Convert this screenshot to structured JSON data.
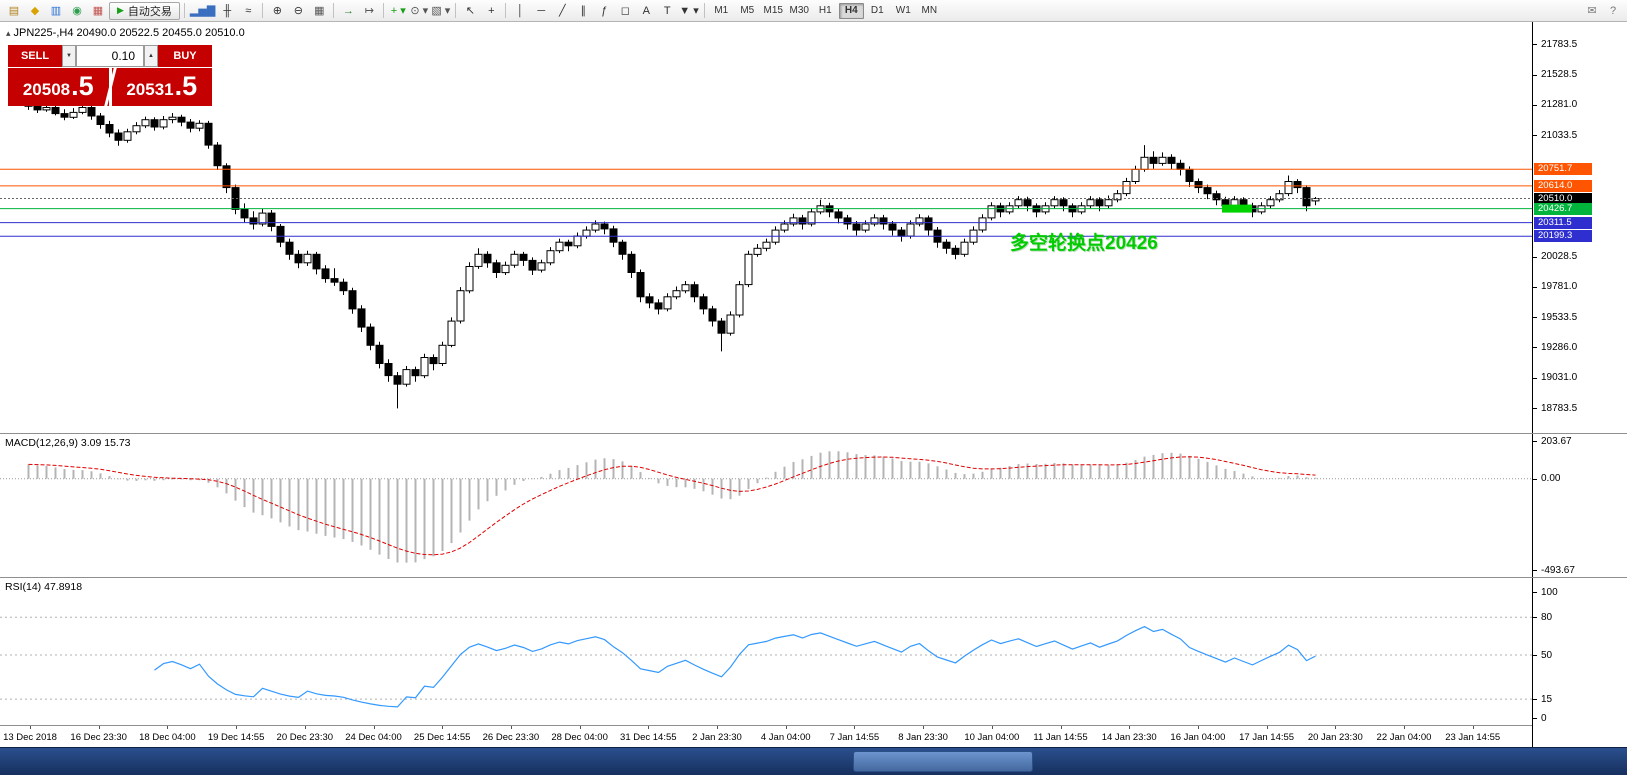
{
  "icons": {
    "chart_title_icon": "▴",
    "volume_down": "▼",
    "volume_up": "▲"
  },
  "toolbar": {
    "items": [
      {
        "name": "new-order-icon",
        "glyph": "▤",
        "color": "#b0821e"
      },
      {
        "name": "profiles-icon",
        "glyph": "◆",
        "color": "#d8a200"
      },
      {
        "name": "market-watch-icon",
        "glyph": "▥",
        "color": "#2a6fd6"
      },
      {
        "name": "navigator-icon",
        "glyph": "◉",
        "color": "#2e9e4f"
      },
      {
        "name": "terminal-icon",
        "glyph": "▦",
        "color": "#c0504d"
      },
      {
        "type": "button",
        "name": "auto-trading-button",
        "glyph": "▶",
        "glyph_color": "#18a018",
        "label": "自动交易"
      },
      {
        "type": "sep"
      },
      {
        "name": "new-chart-icon",
        "glyph": "▂▅▇",
        "color": "#3a6fc0"
      },
      {
        "name": "candlestick-chart-icon",
        "glyph": "╫",
        "color": "#333333"
      },
      {
        "name": "line-chart-icon",
        "glyph": "≈",
        "color": "#333333"
      },
      {
        "type": "sep"
      },
      {
        "name": "zoom-in-icon",
        "glyph": "⊕",
        "color": "#333333"
      },
      {
        "name": "zoom-out-icon",
        "glyph": "⊖",
        "color": "#333333"
      },
      {
        "name": "tile-windows-icon",
        "glyph": "▦",
        "color": "#555555"
      },
      {
        "type": "sep"
      },
      {
        "name": "auto-scroll-icon",
        "glyph": "→",
        "color": "#2e7d32"
      },
      {
        "name": "chart-shift-icon",
        "glyph": "↦",
        "color": "#555555"
      },
      {
        "type": "sep"
      },
      {
        "name": "indicators-icon",
        "glyph": "+",
        "color": "#18a018",
        "dropdown": true
      },
      {
        "name": "periods-icon",
        "glyph": "⊙",
        "color": "#555555",
        "dropdown": true
      },
      {
        "name": "templates-icon",
        "glyph": "▧",
        "color": "#555555",
        "dropdown": true
      },
      {
        "type": "sep"
      },
      {
        "name": "cursor-icon",
        "glyph": "↖",
        "color": "#333333"
      },
      {
        "name": "crosshair-icon",
        "glyph": "+",
        "color": "#333333"
      },
      {
        "type": "sep"
      },
      {
        "name": "vertical-line-icon",
        "glyph": "│",
        "color": "#333333"
      },
      {
        "name": "horizontal-line-icon",
        "glyph": "─",
        "color": "#333333"
      },
      {
        "name": "trendline-icon",
        "glyph": "╱",
        "color": "#333333"
      },
      {
        "name": "channel-icon",
        "glyph": "∥",
        "color": "#333333"
      },
      {
        "name": "fibonacci-icon",
        "glyph": "ƒ",
        "color": "#333333"
      },
      {
        "name": "shapes-icon",
        "glyph": "◻",
        "color": "#333333"
      },
      {
        "name": "text-icon",
        "glyph": "A",
        "color": "#333333"
      },
      {
        "name": "text-label-icon",
        "glyph": "T",
        "color": "#333333"
      },
      {
        "name": "arrows-icon",
        "glyph": "▼",
        "color": "#333333",
        "dropdown": true
      },
      {
        "type": "sep"
      },
      {
        "type": "tf",
        "label": "M1"
      },
      {
        "type": "tf",
        "label": "M5"
      },
      {
        "type": "tf",
        "label": "M15"
      },
      {
        "type": "tf",
        "label": "M30"
      },
      {
        "type": "tf",
        "label": "H1"
      },
      {
        "type": "tf",
        "label": "H4",
        "active": true
      },
      {
        "type": "tf",
        "label": "D1"
      },
      {
        "type": "tf",
        "label": "W1"
      },
      {
        "type": "tf",
        "label": "MN"
      },
      {
        "type": "spacer"
      },
      {
        "name": "mail-icon",
        "glyph": "✉",
        "color": "#777777"
      },
      {
        "name": "help-icon",
        "glyph": "?",
        "color": "#777777"
      }
    ]
  },
  "chart": {
    "title": "JPN225-,H4 20490.0 20522.5 20455.0 20510.0",
    "trade_panel": {
      "sell_label": "SELL",
      "buy_label": "BUY",
      "volume": "0.10",
      "sell_price_main": "20508",
      "sell_price_big": ".5",
      "buy_price_main": "20531",
      "buy_price_big": ".5"
    },
    "levels": [
      {
        "price": 20751.7,
        "label": "20751.7",
        "color": "#ff5500",
        "style": "solid"
      },
      {
        "price": 20614.0,
        "label": "20614.0",
        "color": "#ff5500",
        "style": "solid"
      },
      {
        "price": 20510.0,
        "label": "20510.0",
        "color": "#000000",
        "style": "bid"
      },
      {
        "price": 20426.7,
        "label": "20426.7",
        "color": "#00b43c",
        "style": "solid"
      },
      {
        "price": 20311.5,
        "label": "20311.5",
        "color": "#2f2fd0",
        "style": "solid"
      },
      {
        "price": 20199.3,
        "label": "20199.3",
        "color": "#2f2fd0",
        "style": "solid"
      }
    ],
    "annotation": {
      "text": "多空轮换点20426",
      "color": "#00cc00"
    },
    "highlight": {
      "price": 20426.7,
      "color": "#00d200"
    },
    "y_axis": {
      "scale_labels": [
        "21783.5",
        "21528.5",
        "21281.0",
        "21033.5",
        "20028.5",
        "19781.0",
        "19533.5",
        "19286.0",
        "19031.0",
        "18783.5"
      ]
    },
    "x_axis_labels": [
      "13 Dec 2018",
      "16 Dec 23:30",
      "18 Dec 04:00",
      "19 Dec 14:55",
      "20 Dec 23:30",
      "24 Dec 04:00",
      "25 Dec 14:55",
      "26 Dec 23:30",
      "28 Dec 04:00",
      "31 Dec 14:55",
      "2 Jan 23:30",
      "4 Jan 04:00",
      "7 Jan 14:55",
      "8 Jan 23:30",
      "10 Jan 04:00",
      "11 Jan 14:55",
      "14 Jan 23:30",
      "16 Jan 04:00",
      "17 Jan 14:55",
      "20 Jan 23:30",
      "22 Jan 04:00",
      "23 Jan 14:55"
    ]
  },
  "chart_data": {
    "type": "candlestick",
    "symbol": "JPN225-",
    "timeframe": "H4",
    "current_ohlc": {
      "open": 20490.0,
      "high": 20522.5,
      "low": 20455.0,
      "close": 20510.0
    },
    "price_range": [
      18783.5,
      21783.5
    ],
    "macd": {
      "name": "MACD(12,26,9)",
      "values_text": "3.09 15.73",
      "axis_labels": [
        "203.67",
        "0.00",
        "-493.67"
      ],
      "axis_values": [
        203.67,
        0,
        -493.67
      ]
    },
    "rsi": {
      "name": "RSI(14)",
      "value_text": "47.8918",
      "axis_labels": [
        "100",
        "80",
        "50",
        "15",
        "0"
      ],
      "axis_values": [
        100,
        80,
        50,
        15,
        0
      ],
      "levels": [
        80,
        50,
        15
      ]
    },
    "candles": [
      [
        21280,
        21310,
        21240,
        21270
      ],
      [
        21270,
        21295,
        21215,
        21240
      ],
      [
        21240,
        21290,
        21225,
        21260
      ],
      [
        21260,
        21330,
        21195,
        21210
      ],
      [
        21210,
        21245,
        21155,
        21180
      ],
      [
        21180,
        21255,
        21165,
        21220
      ],
      [
        21220,
        21320,
        21205,
        21260
      ],
      [
        21260,
        21285,
        21160,
        21190
      ],
      [
        21190,
        21215,
        21085,
        21120
      ],
      [
        21120,
        21150,
        21015,
        21050
      ],
      [
        21050,
        21080,
        20945,
        20990
      ],
      [
        20990,
        21085,
        20970,
        21060
      ],
      [
        21060,
        21140,
        21040,
        21110
      ],
      [
        21110,
        21185,
        21090,
        21160
      ],
      [
        21160,
        21180,
        21070,
        21100
      ],
      [
        21100,
        21190,
        21080,
        21160
      ],
      [
        21160,
        21215,
        21130,
        21180
      ],
      [
        21180,
        21200,
        21105,
        21140
      ],
      [
        21140,
        21165,
        21055,
        21090
      ],
      [
        21090,
        21155,
        21065,
        21130
      ],
      [
        21130,
        21150,
        20920,
        20950
      ],
      [
        20950,
        20975,
        20745,
        20780
      ],
      [
        20780,
        20800,
        20555,
        20600
      ],
      [
        20600,
        20625,
        20380,
        20420
      ],
      [
        20420,
        20470,
        20315,
        20350
      ],
      [
        20350,
        20405,
        20255,
        20300
      ],
      [
        20300,
        20425,
        20280,
        20390
      ],
      [
        20390,
        20415,
        20240,
        20280
      ],
      [
        20280,
        20300,
        20110,
        20150
      ],
      [
        20150,
        20180,
        20005,
        20050
      ],
      [
        20050,
        20085,
        19935,
        19980
      ],
      [
        19980,
        20080,
        19955,
        20050
      ],
      [
        20050,
        20070,
        19885,
        19930
      ],
      [
        19930,
        19960,
        19815,
        19850
      ],
      [
        19850,
        19935,
        19790,
        19820
      ],
      [
        19820,
        19850,
        19715,
        19750
      ],
      [
        19750,
        19775,
        19560,
        19600
      ],
      [
        19600,
        19630,
        19410,
        19450
      ],
      [
        19450,
        19480,
        19260,
        19300
      ],
      [
        19300,
        19330,
        19110,
        19150
      ],
      [
        19150,
        19185,
        19000,
        19050
      ],
      [
        19050,
        19080,
        18780,
        18980
      ],
      [
        18980,
        19130,
        18960,
        19100
      ],
      [
        19100,
        19125,
        19000,
        19050
      ],
      [
        19050,
        19230,
        19030,
        19200
      ],
      [
        19200,
        19225,
        19095,
        19150
      ],
      [
        19150,
        19330,
        19130,
        19300
      ],
      [
        19300,
        19530,
        19285,
        19500
      ],
      [
        19500,
        19780,
        19480,
        19750
      ],
      [
        19750,
        19985,
        19730,
        19950
      ],
      [
        19950,
        20100,
        19930,
        20050
      ],
      [
        20050,
        20075,
        19940,
        19980
      ],
      [
        19980,
        20005,
        19855,
        19900
      ],
      [
        19900,
        19990,
        19880,
        19960
      ],
      [
        19960,
        20080,
        19940,
        20050
      ],
      [
        20050,
        20070,
        19955,
        20000
      ],
      [
        20000,
        20025,
        19880,
        19920
      ],
      [
        19920,
        20005,
        19900,
        19980
      ],
      [
        19980,
        20110,
        19960,
        20080
      ],
      [
        20080,
        20180,
        20060,
        20150
      ],
      [
        20150,
        20170,
        20075,
        20120
      ],
      [
        20120,
        20230,
        20100,
        20200
      ],
      [
        20200,
        20280,
        20180,
        20250
      ],
      [
        20250,
        20330,
        20230,
        20300
      ],
      [
        20300,
        20320,
        20215,
        20260
      ],
      [
        20260,
        20285,
        20110,
        20150
      ],
      [
        20150,
        20170,
        20005,
        20050
      ],
      [
        20050,
        20075,
        19855,
        19900
      ],
      [
        19900,
        19925,
        19655,
        19700
      ],
      [
        19700,
        19730,
        19605,
        19650
      ],
      [
        19650,
        19680,
        19555,
        19600
      ],
      [
        19600,
        19730,
        19580,
        19700
      ],
      [
        19700,
        19785,
        19680,
        19750
      ],
      [
        19750,
        19830,
        19730,
        19800
      ],
      [
        19800,
        19825,
        19655,
        19700
      ],
      [
        19700,
        19725,
        19555,
        19600
      ],
      [
        19600,
        19625,
        19455,
        19500
      ],
      [
        19500,
        19525,
        19250,
        19400
      ],
      [
        19400,
        19580,
        19380,
        19550
      ],
      [
        19550,
        19830,
        19530,
        19800
      ],
      [
        19800,
        20080,
        19780,
        20050
      ],
      [
        20050,
        20135,
        20030,
        20100
      ],
      [
        20100,
        20180,
        20075,
        20150
      ],
      [
        20150,
        20280,
        20130,
        20250
      ],
      [
        20250,
        20330,
        20230,
        20300
      ],
      [
        20300,
        20385,
        20280,
        20350
      ],
      [
        20350,
        20375,
        20255,
        20300
      ],
      [
        20300,
        20430,
        20280,
        20400
      ],
      [
        20400,
        20500,
        20380,
        20450
      ],
      [
        20450,
        20475,
        20355,
        20400
      ],
      [
        20400,
        20425,
        20305,
        20350
      ],
      [
        20350,
        20375,
        20255,
        20300
      ],
      [
        20300,
        20325,
        20205,
        20250
      ],
      [
        20250,
        20330,
        20230,
        20300
      ],
      [
        20300,
        20380,
        20280,
        20350
      ],
      [
        20350,
        20375,
        20255,
        20300
      ],
      [
        20300,
        20325,
        20205,
        20250
      ],
      [
        20250,
        20275,
        20155,
        20200
      ],
      [
        20200,
        20330,
        20180,
        20300
      ],
      [
        20300,
        20380,
        20280,
        20350
      ],
      [
        20350,
        20370,
        20205,
        20250
      ],
      [
        20250,
        20275,
        20105,
        20150
      ],
      [
        20150,
        20175,
        20055,
        20100
      ],
      [
        20100,
        20125,
        20010,
        20050
      ],
      [
        20050,
        20180,
        20030,
        20150
      ],
      [
        20150,
        20280,
        20130,
        20250
      ],
      [
        20250,
        20380,
        20230,
        20350
      ],
      [
        20350,
        20480,
        20330,
        20450
      ],
      [
        20450,
        20475,
        20355,
        20400
      ],
      [
        20400,
        20480,
        20380,
        20450
      ],
      [
        20450,
        20530,
        20430,
        20500
      ],
      [
        20500,
        20525,
        20405,
        20450
      ],
      [
        20450,
        20470,
        20355,
        20400
      ],
      [
        20400,
        20480,
        20380,
        20450
      ],
      [
        20450,
        20530,
        20430,
        20500
      ],
      [
        20500,
        20520,
        20405,
        20450
      ],
      [
        20450,
        20470,
        20355,
        20400
      ],
      [
        20400,
        20480,
        20380,
        20450
      ],
      [
        20450,
        20530,
        20430,
        20500
      ],
      [
        20500,
        20520,
        20405,
        20450
      ],
      [
        20450,
        20535,
        20430,
        20500
      ],
      [
        20500,
        20580,
        20480,
        20550
      ],
      [
        20550,
        20680,
        20530,
        20650
      ],
      [
        20650,
        20780,
        20630,
        20750
      ],
      [
        20750,
        20950,
        20730,
        20850
      ],
      [
        20850,
        20900,
        20755,
        20800
      ],
      [
        20800,
        20890,
        20780,
        20850
      ],
      [
        20850,
        20875,
        20750,
        20800
      ],
      [
        20800,
        20830,
        20700,
        20750
      ],
      [
        20750,
        20775,
        20605,
        20650
      ],
      [
        20650,
        20675,
        20555,
        20600
      ],
      [
        20600,
        20625,
        20505,
        20550
      ],
      [
        20550,
        20575,
        20455,
        20500
      ],
      [
        20500,
        20525,
        20405,
        20450
      ],
      [
        20450,
        20530,
        20430,
        20500
      ],
      [
        20500,
        20520,
        20405,
        20450
      ],
      [
        20450,
        20475,
        20355,
        20400
      ],
      [
        20400,
        20480,
        20380,
        20450
      ],
      [
        20450,
        20530,
        20430,
        20500
      ],
      [
        20500,
        20580,
        20480,
        20550
      ],
      [
        20550,
        20700,
        20530,
        20650
      ],
      [
        20650,
        20670,
        20555,
        20600
      ],
      [
        20600,
        20620,
        20405,
        20450
      ],
      [
        20490,
        20522.5,
        20455,
        20510
      ]
    ]
  }
}
